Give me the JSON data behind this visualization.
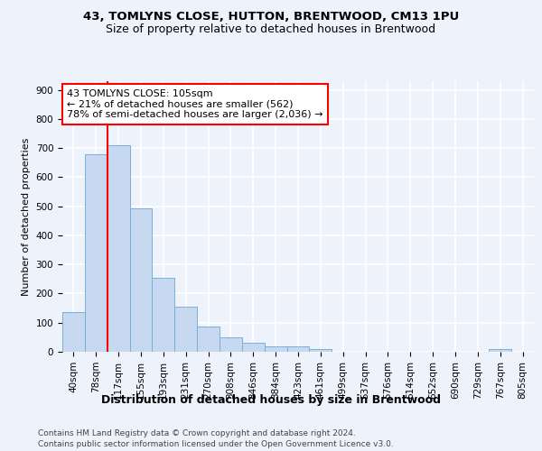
{
  "title_line1": "43, TOMLYNS CLOSE, HUTTON, BRENTWOOD, CM13 1PU",
  "title_line2": "Size of property relative to detached houses in Brentwood",
  "xlabel": "Distribution of detached houses by size in Brentwood",
  "ylabel": "Number of detached properties",
  "categories": [
    "40sqm",
    "78sqm",
    "117sqm",
    "155sqm",
    "193sqm",
    "231sqm",
    "270sqm",
    "308sqm",
    "346sqm",
    "384sqm",
    "423sqm",
    "461sqm",
    "499sqm",
    "537sqm",
    "576sqm",
    "614sqm",
    "652sqm",
    "690sqm",
    "729sqm",
    "767sqm",
    "805sqm"
  ],
  "values": [
    137,
    678,
    710,
    493,
    253,
    155,
    87,
    50,
    30,
    20,
    20,
    10,
    0,
    0,
    0,
    0,
    0,
    0,
    0,
    10,
    0
  ],
  "bar_color": "#c6d9f0",
  "bar_edge_color": "#7bafd4",
  "red_line_x": 1.5,
  "annotation_text": "43 TOMLYNS CLOSE: 105sqm\n← 21% of detached houses are smaller (562)\n78% of semi-detached houses are larger (2,036) →",
  "annotation_box_color": "white",
  "annotation_box_edge": "red",
  "ylim": [
    0,
    930
  ],
  "yticks": [
    0,
    100,
    200,
    300,
    400,
    500,
    600,
    700,
    800,
    900
  ],
  "footer_line1": "Contains HM Land Registry data © Crown copyright and database right 2024.",
  "footer_line2": "Contains public sector information licensed under the Open Government Licence v3.0.",
  "background_color": "#eef2fb",
  "grid_color": "white",
  "title1_fontsize": 9.5,
  "title2_fontsize": 9,
  "ylabel_fontsize": 8,
  "xlabel_fontsize": 9,
  "tick_fontsize": 7.5,
  "footer_fontsize": 6.5
}
